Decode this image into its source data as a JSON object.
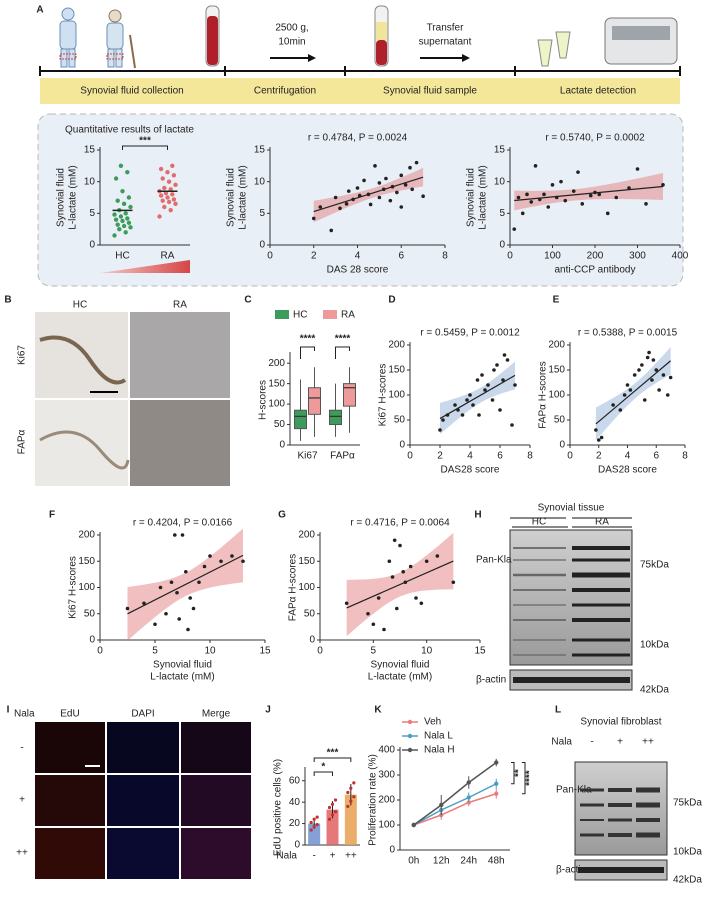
{
  "panel_letters": [
    "A",
    "B",
    "C",
    "D",
    "E",
    "F",
    "G",
    "H",
    "I",
    "J",
    "K",
    "L"
  ],
  "schematic": {
    "steps": [
      "Synovial fluid collection",
      "Centrifugation",
      "Synovial fluid sample",
      "Lactate detection"
    ],
    "centrifuge_label": [
      "2500 g,",
      "10min"
    ],
    "transfer_label": [
      "Transfer",
      "supernatant"
    ],
    "box_title": "Quantitative results of lactate"
  },
  "images": {
    "B": {
      "columns": [
        "HC",
        "RA"
      ],
      "rows": [
        "Ki67",
        "FAPα"
      ]
    },
    "I": {
      "group_label": "Nala",
      "columns": [
        "EdU",
        "DAPI",
        "Merge"
      ],
      "rows": [
        "-",
        "+",
        "++"
      ]
    }
  },
  "blots": {
    "H": {
      "title": "Synovial tissue",
      "groups": [
        "HC",
        "RA"
      ],
      "bands": [
        "Pan-Kla",
        "β-actin"
      ],
      "markers": [
        "75kDa",
        "10kDa",
        "42kDa"
      ]
    },
    "L": {
      "title": "Synovial fibroblast",
      "group_label": "Nala",
      "lanes": [
        "-",
        "+",
        "++"
      ],
      "bands": [
        "Pan-Kla",
        "β-actin"
      ],
      "markers": [
        "75kDa",
        "10kDa",
        "42kDa"
      ]
    }
  },
  "chart_data": [
    {
      "type": "strip",
      "ylabel": [
        "Synovial fluid",
        "L-lactate (mM)"
      ],
      "categories": [
        "HC",
        "RA"
      ],
      "groups": [
        {
          "color": "#3d9b5c",
          "values": [
            1.5,
            2.0,
            2.5,
            2.8,
            3.0,
            3.2,
            3.5,
            3.8,
            4.0,
            4.2,
            4.5,
            4.8,
            5.0,
            5.5,
            6.0,
            6.5,
            7.0,
            7.5,
            8.5,
            10.5,
            11.5,
            12.5
          ]
        },
        {
          "color": "#e06c6c",
          "values": [
            4.5,
            5.5,
            6.0,
            6.5,
            6.8,
            7.0,
            7.2,
            7.5,
            7.8,
            8.0,
            8.2,
            8.5,
            8.8,
            9.0,
            9.5,
            10.0,
            10.5,
            11.0,
            11.5,
            12.0,
            12.5
          ]
        }
      ],
      "ylim": [
        0,
        15
      ],
      "yticks": [
        0,
        5,
        10,
        15
      ],
      "significance": "***"
    },
    {
      "type": "scatter",
      "annotation": "r = 0.4784,  P = 0.0024",
      "xlabel": [
        "DAS 28 score"
      ],
      "ylabel": [
        "Synovial fluid",
        "L-lactate (mM)"
      ],
      "x": [
        2.0,
        2.3,
        2.8,
        3.0,
        3.2,
        3.5,
        3.6,
        3.8,
        4.0,
        4.1,
        4.3,
        4.5,
        4.6,
        4.8,
        5.0,
        5.0,
        5.2,
        5.3,
        5.5,
        5.6,
        5.8,
        6.0,
        6.0,
        6.2,
        6.4,
        6.5,
        6.7,
        7.0
      ],
      "y": [
        4.2,
        6.0,
        2.3,
        7.5,
        5.8,
        6.5,
        8.5,
        7.2,
        9.0,
        7.8,
        10.2,
        8.0,
        6.4,
        12.5,
        9.8,
        7.5,
        8.8,
        10.5,
        7.0,
        9.2,
        8.3,
        11.0,
        6.0,
        9.5,
        12.2,
        8.8,
        13.0,
        7.7
      ],
      "xlim": [
        0,
        8
      ],
      "xticks": [
        0,
        2,
        4,
        6,
        8
      ],
      "ylim": [
        0,
        15
      ],
      "yticks": [
        0,
        5,
        10,
        15
      ],
      "band_color": "#e58a8a"
    },
    {
      "type": "scatter",
      "annotation": "r = 0.5740,  P = 0.0002",
      "xlabel": [
        "anti-CCP antibody"
      ],
      "ylabel": [
        "Synovial fluid",
        "L-lactate (mM)"
      ],
      "x": [
        10,
        20,
        30,
        40,
        50,
        60,
        70,
        80,
        90,
        100,
        110,
        120,
        130,
        150,
        160,
        170,
        190,
        200,
        210,
        230,
        250,
        280,
        300,
        320,
        360
      ],
      "y": [
        2.5,
        7.5,
        5.0,
        8.0,
        6.8,
        12.5,
        7.2,
        8.0,
        6.0,
        9.5,
        7.5,
        10.0,
        7.0,
        8.5,
        11.5,
        6.5,
        7.8,
        8.3,
        8.0,
        5.0,
        7.5,
        9.0,
        12.0,
        6.5,
        9.5
      ],
      "xlim": [
        0,
        400
      ],
      "xticks": [
        0,
        100,
        200,
        300,
        400
      ],
      "ylim": [
        0,
        15
      ],
      "yticks": [
        0,
        5,
        10,
        15
      ],
      "band_color": "#e58a8a"
    },
    {
      "type": "box",
      "ylabel": [
        "H-scores"
      ],
      "categories": [
        "Ki67",
        "FAPα"
      ],
      "series": [
        {
          "name": "HC",
          "color": "#3d9b5c",
          "stats": [
            [
              10,
              40,
              70,
              85,
              160
            ],
            [
              20,
              50,
              70,
              85,
              150
            ]
          ]
        },
        {
          "name": "RA",
          "color": "#ee9a9a",
          "stats": [
            [
              20,
              75,
              115,
              140,
              190
            ],
            [
              30,
              95,
              140,
              150,
              190
            ]
          ]
        }
      ],
      "ylim": [
        0,
        220
      ],
      "yticks": [
        0,
        50,
        100,
        150,
        200
      ],
      "significance": [
        "****",
        "****"
      ]
    },
    {
      "type": "scatter",
      "annotation": "r = 0.5459,  P = 0.0012",
      "xlabel": [
        "DAS28 score"
      ],
      "ylabel": [
        "Ki67 H-scores"
      ],
      "x": [
        2.0,
        2.2,
        2.5,
        3.0,
        3.2,
        3.5,
        3.8,
        4.0,
        4.2,
        4.5,
        4.6,
        4.8,
        5.0,
        5.2,
        5.5,
        5.6,
        5.8,
        6.0,
        6.2,
        6.3,
        6.5,
        6.8,
        7.0
      ],
      "y": [
        30,
        50,
        60,
        80,
        70,
        60,
        90,
        100,
        80,
        130,
        60,
        140,
        110,
        120,
        90,
        150,
        160,
        70,
        130,
        180,
        170,
        40,
        120
      ],
      "xlim": [
        0,
        8
      ],
      "xticks": [
        0,
        2,
        4,
        6,
        8
      ],
      "ylim": [
        0,
        200
      ],
      "yticks": [
        0,
        50,
        100,
        150,
        200
      ],
      "band_color": "#9db8d8"
    },
    {
      "type": "scatter",
      "annotation": "r = 0.5388,  P = 0.0015",
      "xlabel": [
        "DAS28 score"
      ],
      "ylabel": [
        "FAPα H-scores"
      ],
      "x": [
        1.8,
        2.0,
        2.2,
        3.0,
        3.5,
        3.8,
        4.0,
        4.2,
        4.5,
        4.8,
        5.0,
        5.2,
        5.4,
        5.5,
        5.7,
        5.8,
        6.0,
        6.2,
        6.5,
        6.8,
        7.0
      ],
      "y": [
        30,
        10,
        15,
        80,
        70,
        100,
        120,
        110,
        140,
        150,
        160,
        90,
        175,
        185,
        130,
        170,
        150,
        110,
        140,
        100,
        135
      ],
      "xlim": [
        0,
        8
      ],
      "xticks": [
        0,
        2,
        4,
        6,
        8
      ],
      "ylim": [
        0,
        200
      ],
      "yticks": [
        0,
        50,
        100,
        150,
        200
      ],
      "band_color": "#9db8d8"
    },
    {
      "type": "scatter",
      "annotation": "r = 0.4204,  P = 0.0166",
      "xlabel": [
        "Synovial fluid",
        "L-lactate (mM)"
      ],
      "ylabel": [
        "Ki67 H-scores"
      ],
      "x": [
        2.5,
        4.0,
        5.0,
        5.5,
        6.0,
        6.5,
        6.8,
        7.0,
        7.2,
        7.5,
        7.8,
        8.0,
        8.2,
        8.5,
        9.0,
        9.5,
        10.0,
        11.0,
        12.0,
        13.0
      ],
      "y": [
        60,
        70,
        30,
        100,
        50,
        110,
        200,
        90,
        40,
        200,
        130,
        20,
        80,
        60,
        110,
        140,
        160,
        150,
        160,
        150
      ],
      "xlim": [
        0,
        15
      ],
      "xticks": [
        0,
        5,
        10,
        15
      ],
      "ylim": [
        0,
        200
      ],
      "yticks": [
        0,
        50,
        100,
        150,
        200
      ],
      "band_color": "#e58a8a"
    },
    {
      "type": "scatter",
      "annotation": "r = 0.4716,  P = 0.0064",
      "xlabel": [
        "Synovial fluid",
        "L-lactate (mM)"
      ],
      "ylabel": [
        "FAPα H-scores"
      ],
      "x": [
        2.5,
        4.5,
        5.0,
        5.5,
        6.0,
        6.5,
        6.8,
        7.0,
        7.2,
        7.5,
        7.8,
        8.0,
        8.5,
        9.0,
        9.5,
        10.0,
        11.0,
        12.5
      ],
      "y": [
        70,
        50,
        30,
        80,
        20,
        150,
        120,
        190,
        60,
        180,
        130,
        110,
        140,
        80,
        70,
        150,
        160,
        110
      ],
      "xlim": [
        0,
        15
      ],
      "xticks": [
        0,
        5,
        10,
        15
      ],
      "ylim": [
        0,
        200
      ],
      "yticks": [
        0,
        50,
        100,
        150,
        200
      ],
      "band_color": "#e58a8a"
    },
    {
      "type": "bar",
      "ylabel": [
        "EdU positive cells (%)"
      ],
      "xlabel": "Nala",
      "categories": [
        "-",
        "+",
        "++"
      ],
      "values": [
        20,
        33,
        47
      ],
      "errors": [
        5,
        8,
        10
      ],
      "colors": [
        "#6d8fd0",
        "#e06060",
        "#e8a050"
      ],
      "points": [
        [
          14,
          17,
          19,
          21,
          24,
          26
        ],
        [
          24,
          28,
          31,
          35,
          38,
          42
        ],
        [
          36,
          41,
          45,
          49,
          53,
          58
        ]
      ],
      "ylim": [
        0,
        70
      ],
      "yticks": [
        0,
        20,
        40,
        60
      ],
      "significance": [
        "*",
        "***"
      ]
    },
    {
      "type": "line",
      "ylabel": [
        "Proliferation rate (%)"
      ],
      "x": [
        "0h",
        "12h",
        "24h",
        "48h"
      ],
      "series": [
        {
          "name": "Veh",
          "color": "#ec7b7b",
          "values": [
            100,
            140,
            190,
            225
          ],
          "errors": [
            5,
            20,
            15,
            20
          ]
        },
        {
          "name": "Nala L",
          "color": "#4a9ec4",
          "values": [
            100,
            160,
            210,
            265
          ],
          "errors": [
            5,
            30,
            20,
            20
          ]
        },
        {
          "name": "Nala H",
          "color": "#555555",
          "values": [
            100,
            180,
            270,
            350
          ],
          "errors": [
            5,
            40,
            25,
            15
          ]
        }
      ],
      "ylim": [
        0,
        400
      ],
      "yticks": [
        0,
        100,
        200,
        300,
        400
      ],
      "significance": [
        "**",
        "****"
      ]
    }
  ]
}
